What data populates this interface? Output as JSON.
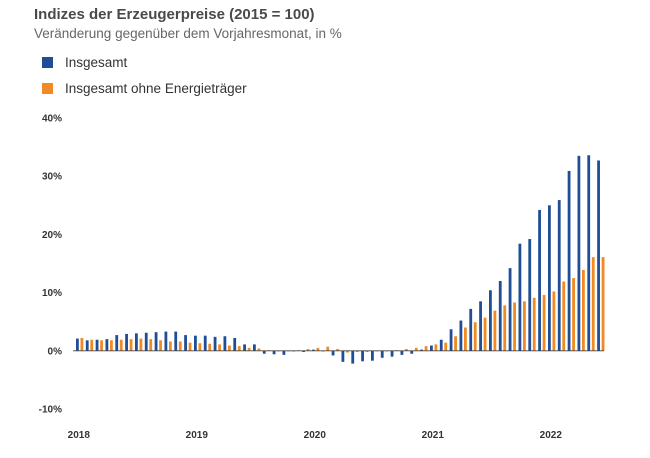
{
  "chart_data": {
    "type": "bar",
    "title": "Indizes der Erzeugerpreise (2015 = 100)",
    "subtitle": "Veränderung gegenüber dem Vorjahresmonat, in %",
    "ylim": [
      -10,
      40
    ],
    "yticks": [
      40,
      30,
      20,
      10,
      0,
      -10
    ],
    "ytick_labels": [
      "40%",
      "30%",
      "20%",
      "10%",
      "0%",
      "-10%"
    ],
    "xtick_labels": [
      "2018",
      "2019",
      "2020",
      "2021",
      "2022"
    ],
    "colors": {
      "Insgesamt": "#1f4e96",
      "Insgesamt ohne Energieträger": "#f08a24"
    },
    "categories": [
      "2018-01",
      "2018-02",
      "2018-03",
      "2018-04",
      "2018-05",
      "2018-06",
      "2018-07",
      "2018-08",
      "2018-09",
      "2018-10",
      "2018-11",
      "2018-12",
      "2019-01",
      "2019-02",
      "2019-03",
      "2019-04",
      "2019-05",
      "2019-06",
      "2019-07",
      "2019-08",
      "2019-09",
      "2019-10",
      "2019-11",
      "2019-12",
      "2020-01",
      "2020-02",
      "2020-03",
      "2020-04",
      "2020-05",
      "2020-06",
      "2020-07",
      "2020-08",
      "2020-09",
      "2020-10",
      "2020-11",
      "2020-12",
      "2021-01",
      "2021-02",
      "2021-03",
      "2021-04",
      "2021-05",
      "2021-06",
      "2021-07",
      "2021-08",
      "2021-09",
      "2021-10",
      "2021-11",
      "2021-12",
      "2022-01",
      "2022-02",
      "2022-03",
      "2022-04",
      "2022-05",
      "2022-06"
    ],
    "series": [
      {
        "name": "Insgesamt",
        "values": [
          2.1,
          1.8,
          1.9,
          2.0,
          2.7,
          2.9,
          3.0,
          3.1,
          3.2,
          3.3,
          3.3,
          2.7,
          2.6,
          2.6,
          2.4,
          2.5,
          2.2,
          1.1,
          1.1,
          -0.5,
          -0.6,
          -0.7,
          -0.1,
          -0.2,
          0.2,
          -0.1,
          -0.8,
          -1.9,
          -2.2,
          -1.8,
          -1.7,
          -1.2,
          -1.0,
          -0.7,
          -0.5,
          0.2,
          0.9,
          1.9,
          3.7,
          5.2,
          7.2,
          8.5,
          10.4,
          12.0,
          14.2,
          18.4,
          19.2,
          24.2,
          25.0,
          25.9,
          30.9,
          33.5,
          33.6,
          32.7
        ]
      },
      {
        "name": "Insgesamt ohne Energieträger",
        "values": [
          2.2,
          1.9,
          1.8,
          1.8,
          1.9,
          2.0,
          2.1,
          2.0,
          1.8,
          1.6,
          1.6,
          1.4,
          1.3,
          1.2,
          1.1,
          0.9,
          0.8,
          0.5,
          0.4,
          0.1,
          -0.1,
          0.0,
          0.1,
          0.3,
          0.5,
          0.7,
          0.3,
          -0.3,
          -0.2,
          -0.2,
          -0.1,
          0.0,
          0.1,
          0.3,
          0.5,
          0.8,
          1.1,
          1.4,
          2.5,
          4.0,
          4.9,
          5.7,
          6.9,
          7.8,
          8.3,
          8.5,
          9.1,
          9.6,
          10.2,
          11.9,
          12.5,
          13.9,
          16.1,
          16.1
        ]
      }
    ]
  }
}
